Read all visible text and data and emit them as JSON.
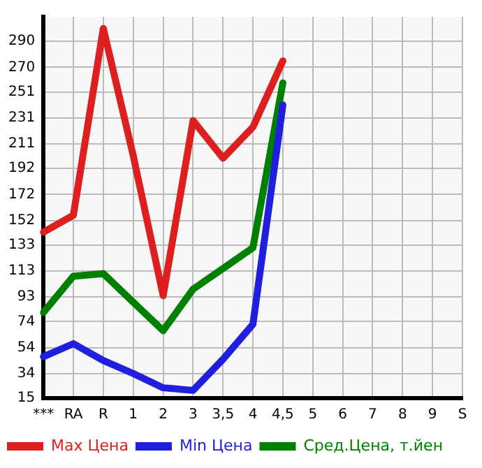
{
  "chart_data": {
    "type": "line",
    "categories": [
      "***",
      "RA",
      "R",
      "1",
      "2",
      "3",
      "3,5",
      "4",
      "4,5",
      "5",
      "6",
      "7",
      "8",
      "9",
      "S"
    ],
    "series": [
      {
        "name": "Max Цена",
        "color": "#dd1f1f",
        "values": [
          143,
          156,
          300,
          202,
          94,
          229,
          200,
          224,
          275,
          null,
          null,
          null,
          null,
          null,
          null
        ]
      },
      {
        "name": "Min Цена",
        "color": "#1f1fdd",
        "values": [
          47,
          57,
          44,
          34,
          23,
          21,
          45,
          72,
          241,
          null,
          null,
          null,
          null,
          null,
          null
        ]
      },
      {
        "name": "Сред.Цена, т.йен",
        "color": "#008000",
        "values": [
          81,
          109,
          111,
          89,
          67,
          99,
          115,
          131,
          258,
          null,
          null,
          null,
          null,
          null,
          null
        ]
      }
    ],
    "ylim": [
      15,
      309
    ],
    "yticks": [
      15,
      34,
      54,
      74,
      93,
      113,
      133,
      152,
      172,
      192,
      211,
      231,
      251,
      270,
      290
    ],
    "grid": true,
    "legend": "bottom",
    "marker": "none",
    "line_style": "solid"
  }
}
